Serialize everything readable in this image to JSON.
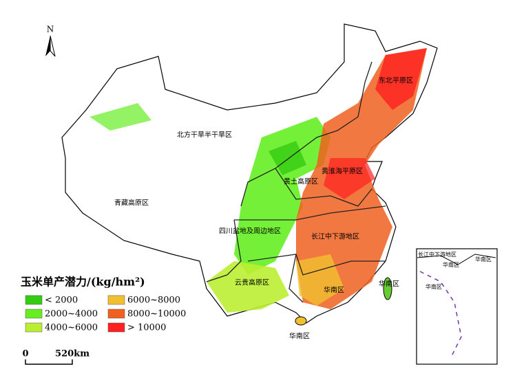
{
  "north_label": "N",
  "regions": [
    {
      "label": "北方干旱半干旱区"
    },
    {
      "label": "东北平原区"
    },
    {
      "label": "黄淮海平原区"
    },
    {
      "label": "黄土高原区"
    },
    {
      "label": "青藏高原区"
    },
    {
      "label": "四川盆地及周边地区"
    },
    {
      "label": "长江中下游地区"
    },
    {
      "label": "云贵高原区"
    },
    {
      "label": "华南区"
    },
    {
      "label": "华南区"
    },
    {
      "label": "华南区"
    }
  ],
  "inset_labels": [
    {
      "label": "长江中下游地区"
    },
    {
      "label": "华南区"
    },
    {
      "label": "华南区"
    },
    {
      "label": "华南区"
    }
  ],
  "legend": {
    "title": "玉米单产潜力/(kg/hm²)",
    "items": [
      {
        "label": "< 2000",
        "color": "#33cc11"
      },
      {
        "label": "2000~4000",
        "color": "#66ee22"
      },
      {
        "label": "4000~6000",
        "color": "#bbee33"
      },
      {
        "label": "6000~8000",
        "color": "#f0c030"
      },
      {
        "label": "8000~10000",
        "color": "#f06020"
      },
      {
        "label": "> 10000",
        "color": "#ff2020"
      }
    ]
  },
  "scale_bar": {
    "labels": [
      "0",
      "520km"
    ]
  }
}
